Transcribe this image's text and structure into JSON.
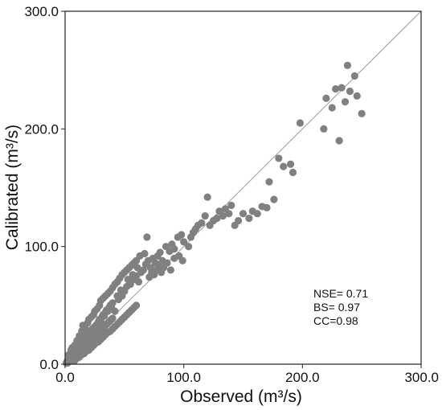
{
  "chart_data": {
    "type": "scatter",
    "title": "",
    "xlabel": "Observed (m³/s)",
    "ylabel": "Calibrated (m³/s)",
    "xlim": [
      0,
      300
    ],
    "ylim": [
      0,
      300
    ],
    "xticks": [
      "0.0",
      "100.0",
      "200.0",
      "300.0"
    ],
    "yticks": [
      "0.0",
      "100.0",
      "200.0",
      "300.0"
    ],
    "tick_values": [
      0,
      100,
      200,
      300
    ],
    "grid": false,
    "reference_line": {
      "x": [
        0,
        300
      ],
      "y": [
        0,
        300
      ]
    },
    "point_color": "#808080",
    "line_color": "#9a9a9a",
    "annotations": [
      "NSE= 0.71",
      "BS= 0.97",
      "CC=0.98"
    ],
    "points": [
      [
        1,
        1
      ],
      [
        2,
        1
      ],
      [
        2,
        3
      ],
      [
        3,
        2
      ],
      [
        3,
        4
      ],
      [
        4,
        3
      ],
      [
        4,
        6
      ],
      [
        5,
        4
      ],
      [
        5,
        7
      ],
      [
        6,
        5
      ],
      [
        6,
        8
      ],
      [
        7,
        6
      ],
      [
        7,
        10
      ],
      [
        8,
        7
      ],
      [
        8,
        11
      ],
      [
        9,
        9
      ],
      [
        9,
        13
      ],
      [
        10,
        8
      ],
      [
        10,
        12
      ],
      [
        11,
        10
      ],
      [
        11,
        15
      ],
      [
        12,
        11
      ],
      [
        12,
        16
      ],
      [
        13,
        13
      ],
      [
        13,
        18
      ],
      [
        14,
        12
      ],
      [
        14,
        17
      ],
      [
        15,
        14
      ],
      [
        15,
        20
      ],
      [
        16,
        15
      ],
      [
        16,
        22
      ],
      [
        17,
        16
      ],
      [
        17,
        21
      ],
      [
        18,
        18
      ],
      [
        18,
        24
      ],
      [
        19,
        17
      ],
      [
        19,
        23
      ],
      [
        20,
        19
      ],
      [
        20,
        26
      ],
      [
        21,
        20
      ],
      [
        21,
        28
      ],
      [
        22,
        21
      ],
      [
        22,
        27
      ],
      [
        23,
        23
      ],
      [
        23,
        30
      ],
      [
        24,
        22
      ],
      [
        24,
        29
      ],
      [
        25,
        24
      ],
      [
        25,
        32
      ],
      [
        26,
        25
      ],
      [
        26,
        33
      ],
      [
        27,
        26
      ],
      [
        27,
        34
      ],
      [
        28,
        27
      ],
      [
        28,
        36
      ],
      [
        29,
        28
      ],
      [
        29,
        38
      ],
      [
        30,
        29
      ],
      [
        30,
        37
      ],
      [
        31,
        30
      ],
      [
        31,
        40
      ],
      [
        32,
        31
      ],
      [
        32,
        42
      ],
      [
        33,
        32
      ],
      [
        33,
        41
      ],
      [
        34,
        33
      ],
      [
        34,
        44
      ],
      [
        35,
        34
      ],
      [
        35,
        46
      ],
      [
        36,
        35
      ],
      [
        36,
        45
      ],
      [
        37,
        36
      ],
      [
        37,
        48
      ],
      [
        38,
        37
      ],
      [
        38,
        50
      ],
      [
        39,
        38
      ],
      [
        39,
        49
      ],
      [
        40,
        39
      ],
      [
        40,
        52
      ],
      [
        3,
        8
      ],
      [
        5,
        12
      ],
      [
        6,
        14
      ],
      [
        8,
        16
      ],
      [
        10,
        20
      ],
      [
        12,
        24
      ],
      [
        14,
        28
      ],
      [
        15,
        33
      ],
      [
        17,
        30
      ],
      [
        19,
        35
      ],
      [
        20,
        38
      ],
      [
        22,
        40
      ],
      [
        24,
        42
      ],
      [
        25,
        45
      ],
      [
        27,
        47
      ],
      [
        29,
        50
      ],
      [
        30,
        54
      ],
      [
        32,
        56
      ],
      [
        34,
        58
      ],
      [
        36,
        60
      ],
      [
        38,
        62
      ],
      [
        40,
        65
      ],
      [
        42,
        68
      ],
      [
        44,
        70
      ],
      [
        46,
        73
      ],
      [
        48,
        76
      ],
      [
        50,
        78
      ],
      [
        52,
        80
      ],
      [
        54,
        82
      ],
      [
        56,
        84
      ],
      [
        58,
        86
      ],
      [
        60,
        88
      ],
      [
        8,
        3
      ],
      [
        10,
        5
      ],
      [
        12,
        6
      ],
      [
        14,
        8
      ],
      [
        16,
        9
      ],
      [
        18,
        11
      ],
      [
        20,
        12
      ],
      [
        22,
        14
      ],
      [
        24,
        16
      ],
      [
        26,
        18
      ],
      [
        28,
        19
      ],
      [
        30,
        21
      ],
      [
        32,
        23
      ],
      [
        34,
        25
      ],
      [
        36,
        27
      ],
      [
        38,
        28
      ],
      [
        40,
        30
      ],
      [
        42,
        32
      ],
      [
        44,
        34
      ],
      [
        46,
        36
      ],
      [
        48,
        38
      ],
      [
        50,
        40
      ],
      [
        52,
        42
      ],
      [
        54,
        44
      ],
      [
        56,
        46
      ],
      [
        58,
        48
      ],
      [
        60,
        50
      ],
      [
        42,
        45
      ],
      [
        45,
        55
      ],
      [
        48,
        58
      ],
      [
        50,
        62
      ],
      [
        52,
        66
      ],
      [
        55,
        68
      ],
      [
        58,
        72
      ],
      [
        60,
        75
      ],
      [
        62,
        70
      ],
      [
        64,
        78
      ],
      [
        66,
        80
      ],
      [
        68,
        85
      ],
      [
        70,
        88
      ],
      [
        72,
        82
      ],
      [
        74,
        90
      ],
      [
        76,
        86
      ],
      [
        78,
        92
      ],
      [
        80,
        95
      ],
      [
        82,
        88
      ],
      [
        85,
        100
      ],
      [
        88,
        96
      ],
      [
        90,
        102
      ],
      [
        92,
        98
      ],
      [
        95,
        108
      ],
      [
        98,
        110
      ],
      [
        100,
        104
      ],
      [
        44,
        58
      ],
      [
        47,
        63
      ],
      [
        53,
        72
      ],
      [
        57,
        76
      ],
      [
        61,
        82
      ],
      [
        63,
        92
      ],
      [
        67,
        94
      ],
      [
        69,
        108
      ],
      [
        71,
        74
      ],
      [
        73,
        78
      ],
      [
        75,
        76
      ],
      [
        77,
        80
      ],
      [
        79,
        84
      ],
      [
        81,
        78
      ],
      [
        83,
        82
      ],
      [
        86,
        86
      ],
      [
        89,
        80
      ],
      [
        92,
        90
      ],
      [
        96,
        92
      ],
      [
        99,
        88
      ],
      [
        104,
        100
      ],
      [
        106,
        108
      ],
      [
        108,
        112
      ],
      [
        110,
        115
      ],
      [
        112,
        118
      ],
      [
        115,
        120
      ],
      [
        118,
        126
      ],
      [
        120,
        142
      ],
      [
        122,
        118
      ],
      [
        125,
        122
      ],
      [
        128,
        124
      ],
      [
        130,
        130
      ],
      [
        133,
        126
      ],
      [
        135,
        132
      ],
      [
        138,
        128
      ],
      [
        140,
        135
      ],
      [
        143,
        118
      ],
      [
        146,
        122
      ],
      [
        150,
        128
      ],
      [
        155,
        124
      ],
      [
        158,
        130
      ],
      [
        162,
        128
      ],
      [
        166,
        134
      ],
      [
        170,
        133
      ],
      [
        172,
        155
      ],
      [
        176,
        140
      ],
      [
        180,
        175
      ],
      [
        184,
        168
      ],
      [
        190,
        170
      ],
      [
        192,
        163
      ],
      [
        198,
        205
      ],
      [
        218,
        200
      ],
      [
        220,
        226
      ],
      [
        225,
        218
      ],
      [
        228,
        234
      ],
      [
        231,
        190
      ],
      [
        233,
        235
      ],
      [
        236,
        223
      ],
      [
        238,
        254
      ],
      [
        240,
        232
      ],
      [
        244,
        245
      ],
      [
        246,
        228
      ],
      [
        250,
        213
      ]
    ]
  }
}
